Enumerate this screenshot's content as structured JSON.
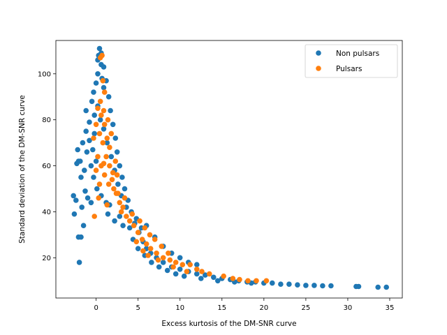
{
  "chart_data": {
    "type": "scatter",
    "title": "",
    "xlabel": "Excess kurtosis of the DM-SNR curve",
    "ylabel": "Standard deviation of the DM-SNR curve",
    "xlim": [
      -4.8,
      36.5
    ],
    "ylim": [
      2.5,
      114.5
    ],
    "xticks": [
      0,
      5,
      10,
      15,
      20,
      25,
      30,
      35
    ],
    "yticks": [
      20,
      40,
      60,
      80,
      100
    ],
    "grid": false,
    "legend_position": "top-right",
    "series": [
      {
        "name": "Non pulsars",
        "color": "#1f77b4",
        "points": [
          [
            -2.7,
            47
          ],
          [
            -2.6,
            39
          ],
          [
            -2.4,
            45
          ],
          [
            -2.3,
            61
          ],
          [
            -2.1,
            62
          ],
          [
            -2.1,
            29
          ],
          [
            -2.0,
            18
          ],
          [
            -1.9,
            62
          ],
          [
            -1.8,
            29
          ],
          [
            -1.7,
            42
          ],
          [
            -1.5,
            34
          ],
          [
            -1.3,
            49
          ],
          [
            -2.2,
            67
          ],
          [
            -1.8,
            55
          ],
          [
            -1.4,
            58
          ],
          [
            -1.0,
            46
          ],
          [
            -0.6,
            44
          ],
          [
            -1.6,
            70
          ],
          [
            -1.1,
            66
          ],
          [
            -0.6,
            60
          ],
          [
            -1.2,
            75
          ],
          [
            -0.8,
            79
          ],
          [
            -1.2,
            84
          ],
          [
            -0.5,
            88
          ],
          [
            -0.3,
            92
          ],
          [
            -0.8,
            71
          ],
          [
            -0.2,
            74
          ],
          [
            -0.4,
            67
          ],
          [
            0.0,
            62
          ],
          [
            -0.3,
            55
          ],
          [
            0.1,
            50
          ],
          [
            0.6,
            47
          ],
          [
            1.2,
            44
          ],
          [
            1.6,
            43
          ],
          [
            0.0,
            96
          ],
          [
            0.2,
            100
          ],
          [
            0.2,
            106
          ],
          [
            0.4,
            111
          ],
          [
            0.6,
            104
          ],
          [
            0.7,
            98
          ],
          [
            0.9,
            94
          ],
          [
            0.3,
            108
          ],
          [
            0.6,
            109
          ],
          [
            0.9,
            103
          ],
          [
            1.2,
            97
          ],
          [
            1.5,
            90
          ],
          [
            1.7,
            84
          ],
          [
            2.0,
            78
          ],
          [
            2.3,
            72
          ],
          [
            2.5,
            66
          ],
          [
            2.8,
            60
          ],
          [
            3.1,
            55
          ],
          [
            3.4,
            50
          ],
          [
            3.8,
            45
          ],
          [
            4.2,
            40
          ],
          [
            4.6,
            35
          ],
          [
            5.1,
            31
          ],
          [
            5.6,
            27
          ],
          [
            6.0,
            24
          ],
          [
            6.5,
            22
          ],
          [
            7.2,
            20
          ],
          [
            8.0,
            18
          ],
          [
            9.0,
            16
          ],
          [
            10.0,
            15
          ],
          [
            11.0,
            14
          ],
          [
            12.0,
            13
          ],
          [
            13.0,
            12.5
          ],
          [
            14.0,
            11.5
          ],
          [
            15.0,
            11
          ],
          [
            16.0,
            10.5
          ],
          [
            17.0,
            10
          ],
          [
            18.0,
            9.5
          ],
          [
            19.0,
            9.5
          ],
          [
            20.0,
            9
          ],
          [
            21.0,
            9
          ],
          [
            22.0,
            8.5
          ],
          [
            23.0,
            8.5
          ],
          [
            24.0,
            8.2
          ],
          [
            25.0,
            8
          ],
          [
            26.0,
            8
          ],
          [
            27.0,
            7.8
          ],
          [
            28.0,
            7.8
          ],
          [
            31.0,
            7.5
          ],
          [
            31.3,
            7.5
          ],
          [
            33.6,
            7.2
          ],
          [
            34.6,
            7.2
          ],
          [
            2.8,
            38
          ],
          [
            3.2,
            34
          ],
          [
            4.0,
            33
          ],
          [
            4.4,
            28
          ],
          [
            5.0,
            24
          ],
          [
            5.8,
            21
          ],
          [
            6.6,
            18
          ],
          [
            7.5,
            16
          ],
          [
            8.5,
            14.5
          ],
          [
            9.5,
            13
          ],
          [
            10.5,
            12
          ],
          [
            12.5,
            11
          ],
          [
            14.5,
            10
          ],
          [
            16.5,
            9.5
          ],
          [
            18.5,
            9
          ],
          [
            6.0,
            34
          ],
          [
            7.0,
            29
          ],
          [
            8.0,
            25
          ],
          [
            9.0,
            22
          ],
          [
            10.0,
            20
          ],
          [
            11.0,
            18
          ],
          [
            12.0,
            17
          ],
          [
            1.4,
            39
          ],
          [
            2.2,
            36
          ],
          [
            -0.2,
            82
          ],
          [
            0.2,
            86
          ],
          [
            0.5,
            80
          ],
          [
            0.9,
            76
          ],
          [
            1.3,
            70
          ],
          [
            1.8,
            64
          ],
          [
            2.2,
            58
          ],
          [
            2.6,
            52
          ],
          [
            3.0,
            47
          ],
          [
            3.6,
            42
          ],
          [
            4.8,
            37
          ],
          [
            5.4,
            33
          ]
        ]
      },
      {
        "name": "Pulsars",
        "color": "#ff7f0e",
        "points": [
          [
            -0.2,
            38
          ],
          [
            0.3,
            46
          ],
          [
            0.5,
            107
          ],
          [
            0.7,
            108
          ],
          [
            0.8,
            97
          ],
          [
            1.0,
            92
          ],
          [
            0.2,
            85
          ],
          [
            0.6,
            82
          ],
          [
            1.0,
            78
          ],
          [
            1.3,
            72
          ],
          [
            1.6,
            68
          ],
          [
            0.4,
            74
          ],
          [
            0.8,
            70
          ],
          [
            1.2,
            64
          ],
          [
            1.6,
            60
          ],
          [
            2.0,
            57
          ],
          [
            0.2,
            64
          ],
          [
            0.6,
            60
          ],
          [
            1.0,
            56
          ],
          [
            1.5,
            52
          ],
          [
            2.1,
            50
          ],
          [
            2.4,
            48
          ],
          [
            2.8,
            44
          ],
          [
            3.2,
            42
          ],
          [
            3.6,
            38
          ],
          [
            4.0,
            36
          ],
          [
            4.5,
            34
          ],
          [
            5.0,
            31
          ],
          [
            5.5,
            28
          ],
          [
            6.0,
            26
          ],
          [
            6.5,
            24
          ],
          [
            7.2,
            22
          ],
          [
            8.0,
            20
          ],
          [
            8.8,
            19
          ],
          [
            9.5,
            18
          ],
          [
            10.3,
            17
          ],
          [
            11.2,
            17
          ],
          [
            12.0,
            15
          ],
          [
            12.6,
            14
          ],
          [
            13.5,
            13
          ],
          [
            15.2,
            12
          ],
          [
            16.3,
            11
          ],
          [
            17.1,
            10.5
          ],
          [
            18.1,
            10
          ],
          [
            19.1,
            10
          ],
          [
            20.3,
            10
          ],
          [
            1.3,
            43
          ],
          [
            0.9,
            61
          ],
          [
            1.9,
            54
          ],
          [
            2.6,
            48
          ],
          [
            3.0,
            40
          ],
          [
            4.3,
            39
          ],
          [
            5.2,
            36
          ],
          [
            5.8,
            33
          ],
          [
            6.4,
            30
          ],
          [
            7.0,
            28
          ],
          [
            7.8,
            25
          ],
          [
            8.6,
            22
          ],
          [
            4.8,
            27
          ],
          [
            5.6,
            23
          ],
          [
            6.2,
            21
          ],
          [
            7.4,
            19
          ],
          [
            9.2,
            16
          ],
          [
            10.8,
            14
          ],
          [
            0.0,
            78
          ],
          [
            0.5,
            88
          ],
          [
            0.9,
            84
          ],
          [
            -0.3,
            72
          ],
          [
            1.4,
            80
          ],
          [
            1.8,
            74
          ],
          [
            2.3,
            62
          ],
          [
            0.0,
            58
          ],
          [
            0.4,
            52
          ],
          [
            2.5,
            56
          ],
          [
            3.4,
            46
          ]
        ]
      }
    ]
  }
}
